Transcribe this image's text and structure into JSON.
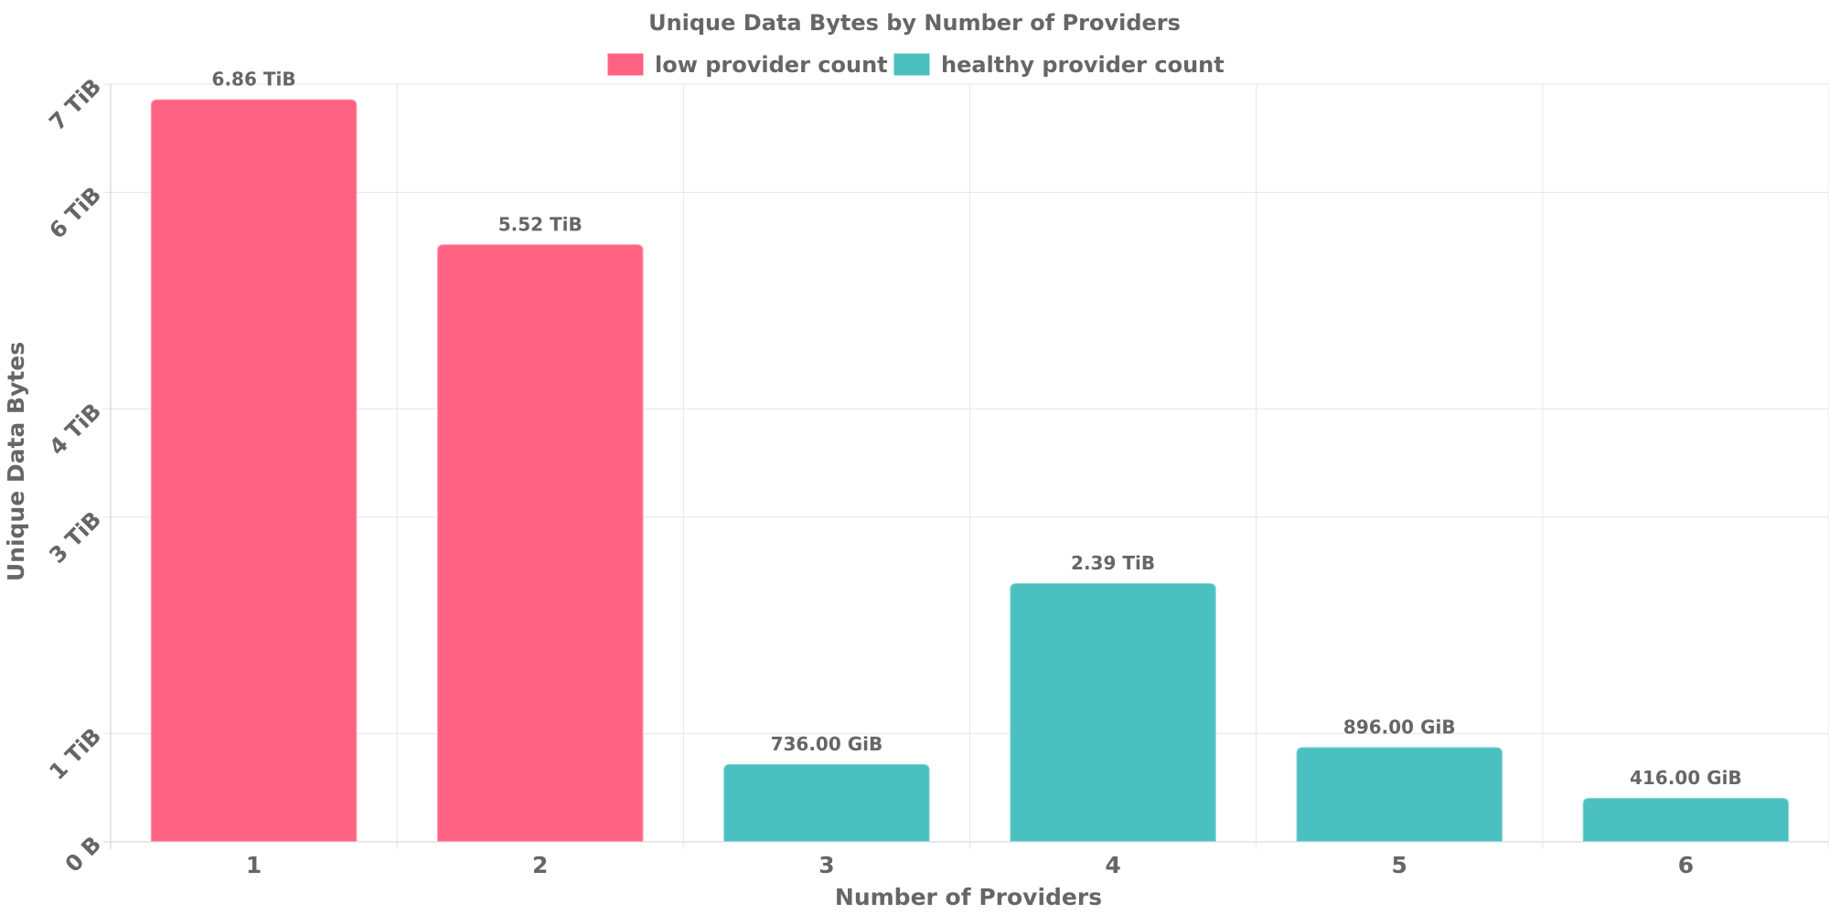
{
  "chart_data": {
    "type": "bar",
    "title": "Unique Data Bytes by Number of Providers",
    "xlabel": "Number of Providers",
    "ylabel": "Unique Data Bytes",
    "categories": [
      "1",
      "2",
      "3",
      "4",
      "5",
      "6"
    ],
    "values_tib": [
      6.86,
      5.52,
      0.71875,
      2.39,
      0.875,
      0.40625
    ],
    "value_labels": [
      "6.86 TiB",
      "5.52 TiB",
      "736.00 GiB",
      "2.39 TiB",
      "896.00 GiB",
      "416.00 GiB"
    ],
    "bar_series": [
      "low",
      "low",
      "healthy",
      "healthy",
      "healthy",
      "healthy"
    ],
    "series": [
      {
        "key": "low",
        "name": "low provider count",
        "color": "#FF6384"
      },
      {
        "key": "healthy",
        "name": "healthy provider count",
        "color": "#4BC0C0"
      }
    ],
    "y_ticks": [
      {
        "label": "0 B",
        "value": 0
      },
      {
        "label": "1 TiB",
        "value": 1
      },
      {
        "label": "3 TiB",
        "value": 3
      },
      {
        "label": "4 TiB",
        "value": 4
      },
      {
        "label": "6 TiB",
        "value": 6
      },
      {
        "label": "7 TiB",
        "value": 7
      }
    ],
    "ylim": [
      0,
      7
    ],
    "y_unit": "TiB",
    "grid": true,
    "legend_position": "top-center"
  }
}
